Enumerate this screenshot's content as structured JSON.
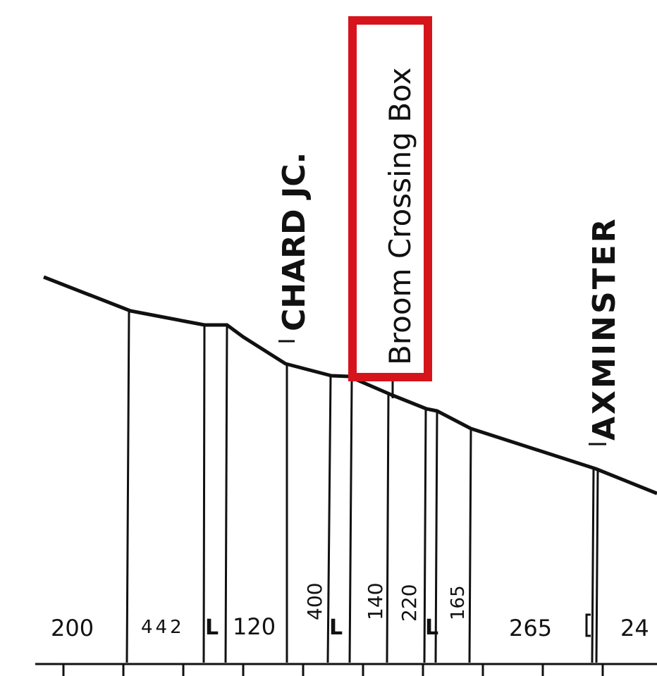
{
  "stations": {
    "chard": "CHARD JC.",
    "broom": "Broom Crossing Box",
    "axminster": "AXMINSTER"
  },
  "gradients": [
    "200",
    "442",
    "L",
    "120",
    "400",
    "L",
    "140",
    "220",
    "L",
    "165",
    "265",
    "24"
  ],
  "colors": {
    "highlight": "#d6141b",
    "ink": "#111111",
    "paper": "#ffffff"
  }
}
